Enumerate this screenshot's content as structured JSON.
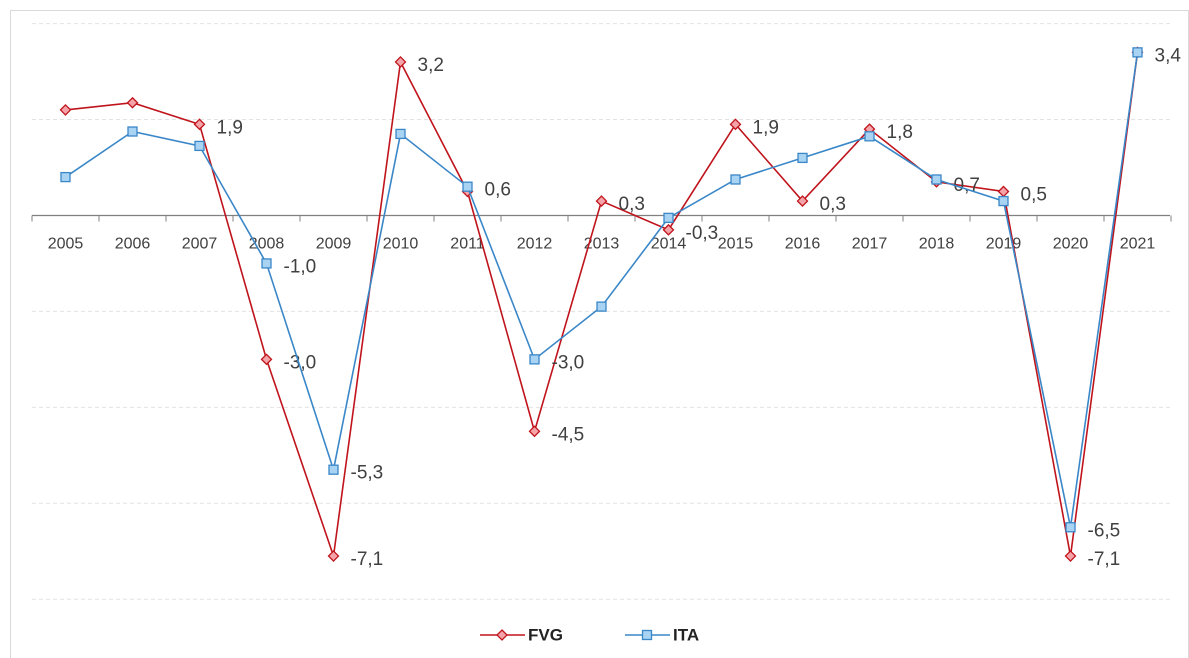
{
  "chart_data": {
    "type": "line",
    "categories": [
      "2005",
      "2006",
      "2007",
      "2008",
      "2009",
      "2010",
      "2011",
      "2012",
      "2013",
      "2014",
      "2015",
      "2016",
      "2017",
      "2018",
      "2019",
      "2020",
      "2021"
    ],
    "series": [
      {
        "name": "FVG",
        "color": "#c0141c",
        "marker": "diamond",
        "values": [
          2.2,
          2.35,
          1.9,
          -3.0,
          -7.1,
          3.2,
          0.5,
          -4.5,
          0.3,
          -0.3,
          1.9,
          0.3,
          1.8,
          0.7,
          0.5,
          -7.1,
          3.4
        ],
        "value_labels": [
          null,
          null,
          "1,9",
          "-3,0",
          "-7,1",
          "3,2",
          null,
          "-4,5",
          "0,3",
          "-0,3",
          "1,9",
          "0,3",
          "1,8",
          "0,7",
          "0,5",
          "-7,1",
          null
        ]
      },
      {
        "name": "ITA",
        "color": "#3a87c8",
        "marker": "square",
        "values": [
          0.8,
          1.75,
          1.45,
          -1.0,
          -5.3,
          1.7,
          0.6,
          -3.0,
          -1.9,
          -0.05,
          0.75,
          1.2,
          1.65,
          0.75,
          0.3,
          -6.5,
          3.4
        ],
        "value_labels": [
          null,
          null,
          null,
          "-1,0",
          "-5,3",
          null,
          "0,6",
          "-3,0",
          null,
          null,
          null,
          null,
          null,
          null,
          null,
          "-6,5",
          "3,4"
        ]
      }
    ],
    "ylim": [
      -8.6,
      4.45
    ],
    "yticks": [
      4,
      2,
      0,
      -2,
      -4,
      -6,
      -8
    ],
    "ytick_labels": false,
    "grid": true,
    "grid_style": "dashed",
    "legend": "bottom"
  }
}
